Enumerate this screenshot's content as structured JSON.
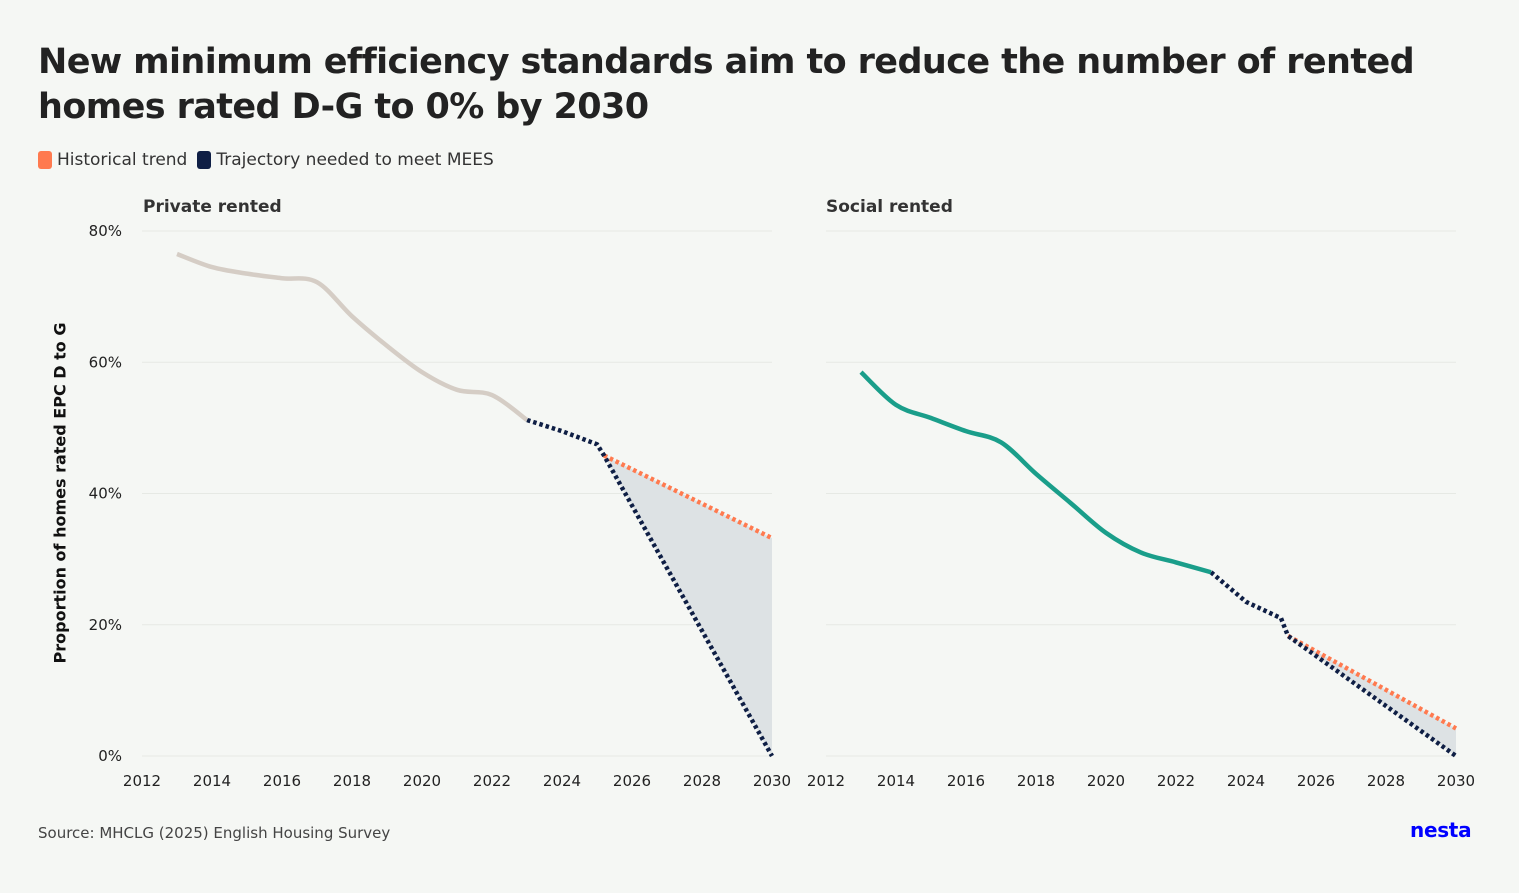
{
  "title": "New minimum efficiency standards aim to reduce the number of rented homes rated D-G to 0% by 2030",
  "legend": {
    "historical": "Historical trend",
    "trajectory": "Trajectory needed to meet MEES"
  },
  "ylabel": "Proportion of homes rated EPC D to G",
  "source": "Source: MHCLG (2025) English Housing Survey",
  "brand": "nesta",
  "colors": {
    "historical_trend": "#ff7a4f",
    "trajectory": "#0f1f45",
    "private_actual": "#d5cdc5",
    "social_actual": "#1a9e8a",
    "gap_fill": "#dde2e4",
    "grid": "#e6e9e4"
  },
  "chart_data": [
    {
      "type": "line",
      "panel": "Private rented",
      "ylim": [
        0,
        80
      ],
      "xlim": [
        2012,
        2030
      ],
      "x_ticks": [
        "2012",
        "2014",
        "2016",
        "2018",
        "2020",
        "2022",
        "2024",
        "2026",
        "2028",
        "2030"
      ],
      "y_ticks": [
        "0%",
        "20%",
        "40%",
        "60%",
        "80%"
      ],
      "series": [
        {
          "role": "actual",
          "x": [
            2013,
            2014,
            2015,
            2016,
            2017,
            2018,
            2019,
            2020,
            2021,
            2022,
            2023
          ],
          "values": [
            76.5,
            74.5,
            73.5,
            72.8,
            72.2,
            67,
            62.5,
            58.5,
            55.8,
            55,
            51.2
          ]
        },
        {
          "role": "historical_trend",
          "x": [
            2025.2,
            2030
          ],
          "values": [
            45.8,
            33.2
          ]
        },
        {
          "role": "trajectory",
          "x": [
            2023,
            2024,
            2025,
            2025.2,
            2030
          ],
          "values": [
            51.2,
            49.5,
            47.5,
            45.8,
            0
          ]
        }
      ],
      "grid": true
    },
    {
      "type": "line",
      "panel": "Social rented",
      "ylim": [
        0,
        80
      ],
      "xlim": [
        2012,
        2030
      ],
      "x_ticks": [
        "2012",
        "2014",
        "2016",
        "2018",
        "2020",
        "2022",
        "2024",
        "2026",
        "2028",
        "2030"
      ],
      "series": [
        {
          "role": "actual",
          "x": [
            2013,
            2014,
            2015,
            2016,
            2017,
            2018,
            2019,
            2020,
            2021,
            2022,
            2023
          ],
          "values": [
            58.5,
            53.5,
            51.5,
            49.5,
            47.8,
            43,
            38.5,
            34,
            31,
            29.5,
            28
          ]
        },
        {
          "role": "historical_trend",
          "x": [
            2025.2,
            2030
          ],
          "values": [
            18.3,
            4.2
          ]
        },
        {
          "role": "trajectory",
          "x": [
            2023,
            2024,
            2025,
            2025.2,
            2030
          ],
          "values": [
            28,
            23.5,
            21,
            18.3,
            0
          ]
        }
      ],
      "grid": true
    }
  ]
}
